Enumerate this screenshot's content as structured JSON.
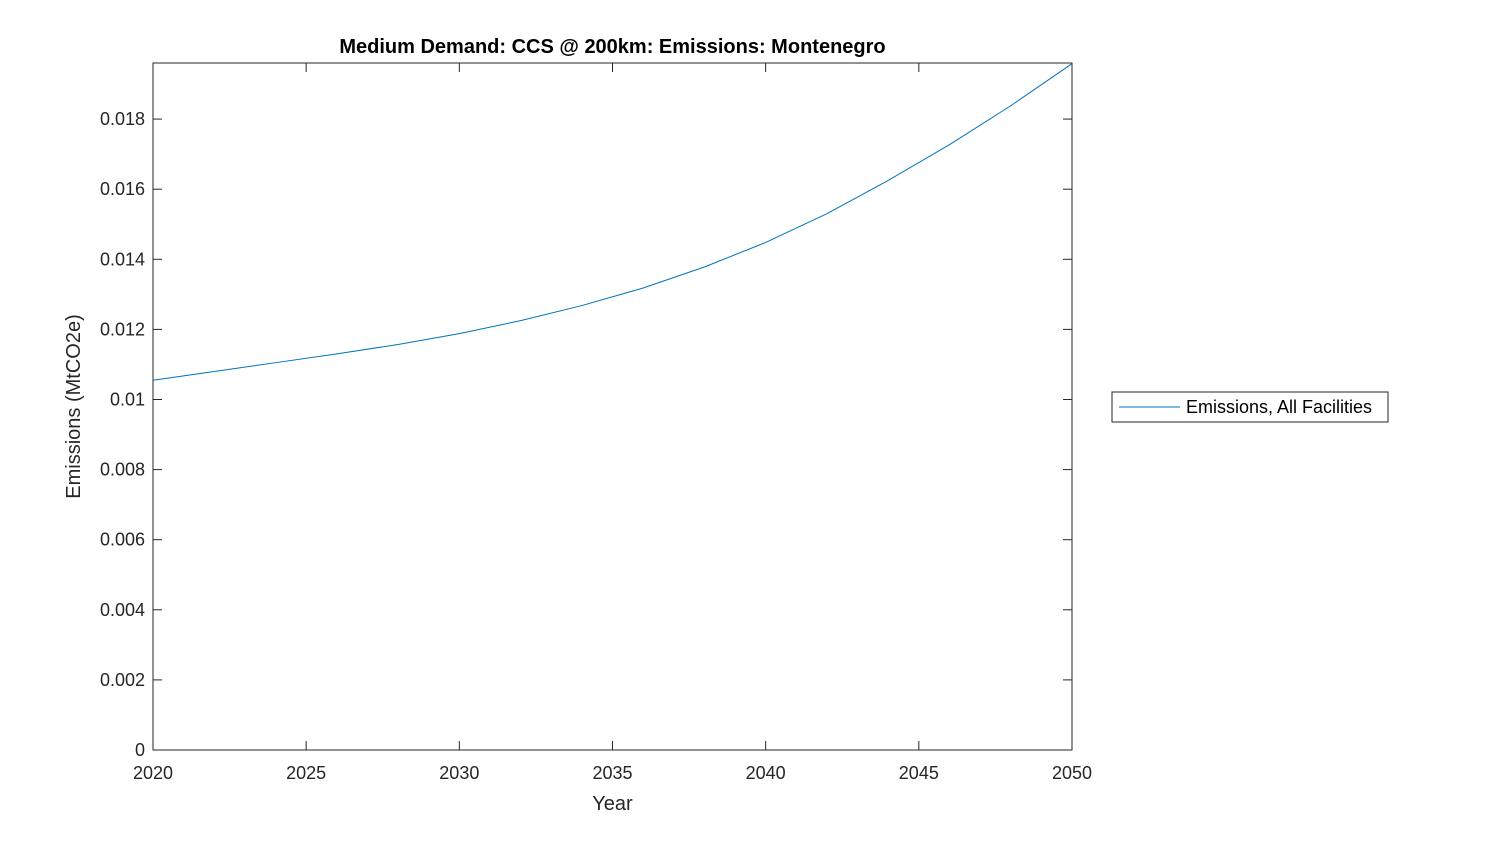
{
  "chart_data": {
    "type": "line",
    "title": "Medium Demand: CCS @ 200km: Emissions: Montenegro",
    "xlabel": "Year",
    "ylabel": "Emissions (MtCO2e)",
    "xlim": [
      2020,
      2050
    ],
    "ylim": [
      0,
      0.0196
    ],
    "x_ticks": [
      2020,
      2025,
      2030,
      2035,
      2040,
      2045,
      2050
    ],
    "x_tick_labels": [
      "2020",
      "2025",
      "2030",
      "2035",
      "2040",
      "2045",
      "2050"
    ],
    "y_ticks": [
      0,
      0.002,
      0.004,
      0.006,
      0.008,
      0.01,
      0.012,
      0.014,
      0.016,
      0.018
    ],
    "y_tick_labels": [
      "0",
      "0.002",
      "0.004",
      "0.006",
      "0.008",
      "0.01",
      "0.012",
      "0.014",
      "0.016",
      "0.018"
    ],
    "grid": false,
    "legend_position": "outside-right",
    "series": [
      {
        "name": "Emissions, All Facilities",
        "color": "#0072BD",
        "x": [
          2020,
          2022,
          2024,
          2026,
          2028,
          2030,
          2032,
          2034,
          2036,
          2038,
          2040,
          2042,
          2044,
          2046,
          2048,
          2050
        ],
        "values": [
          0.01055,
          0.0108,
          0.01105,
          0.0113,
          0.01157,
          0.01188,
          0.01225,
          0.01268,
          0.01318,
          0.01378,
          0.01448,
          0.0153,
          0.01625,
          0.01727,
          0.01838,
          0.01958
        ]
      }
    ]
  }
}
